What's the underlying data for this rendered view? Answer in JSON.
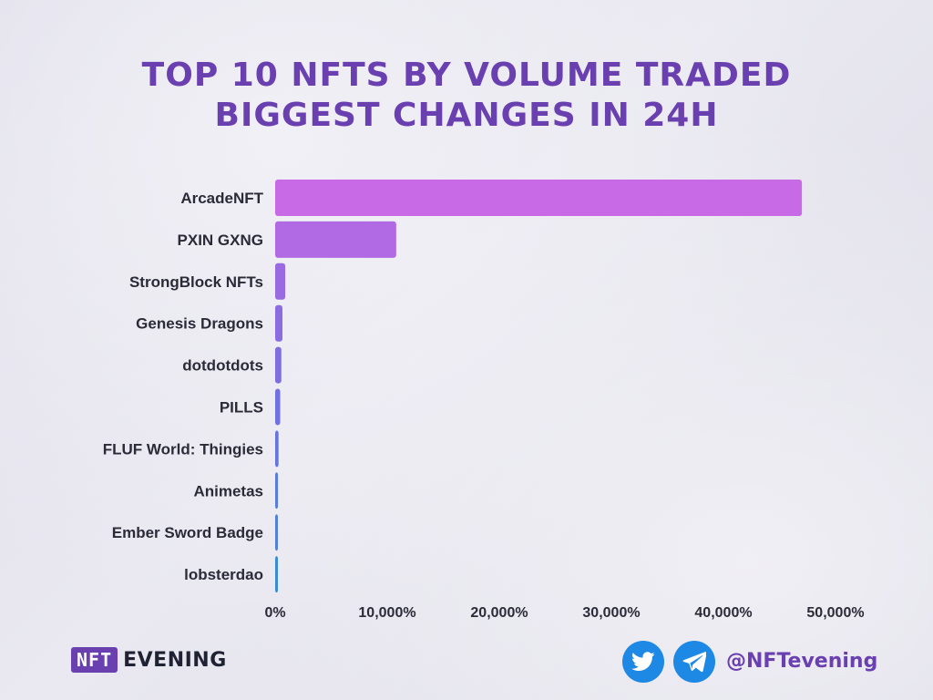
{
  "header": {
    "title_line1": "TOP 10 NFTS BY VOLUME TRADED",
    "title_line2": "BIGGEST CHANGES IN 24H"
  },
  "chart_data": {
    "type": "bar",
    "orientation": "horizontal",
    "categories": [
      "ArcadeNFT",
      "PXIN GXNG",
      "StrongBlock NFTs",
      "Genesis Dragons",
      "dotdotdots",
      "PILLS",
      "FLUF World: Thingies",
      "Animetas",
      "Ember Sword Badge",
      "lobsterdao"
    ],
    "values": [
      47000,
      10800,
      900,
      650,
      550,
      450,
      300,
      250,
      200,
      150
    ],
    "xlim": [
      0,
      50000
    ],
    "x_ticks": [
      0,
      10000,
      20000,
      30000,
      40000,
      50000
    ],
    "x_tick_labels": [
      "0%",
      "10,000%",
      "20,000%",
      "30,000%",
      "40,000%",
      "50,000%"
    ],
    "bar_colors": [
      "#c86ae6",
      "#b169e4",
      "#9a6ae2",
      "#8a6de1",
      "#7d6fe0",
      "#7171df",
      "#6676dd",
      "#5b7cdb",
      "#4f82d8",
      "#3b8bd4"
    ],
    "grid": false,
    "legend": "none"
  },
  "footer": {
    "brand_box": "NFT",
    "brand_word": "EVENING",
    "twitter_icon": "twitter-bird-icon",
    "telegram_icon": "telegram-plane-icon",
    "handle": "@NFTevening",
    "icon_color": "#1e88e5",
    "brand_color": "#6a3fb0"
  }
}
